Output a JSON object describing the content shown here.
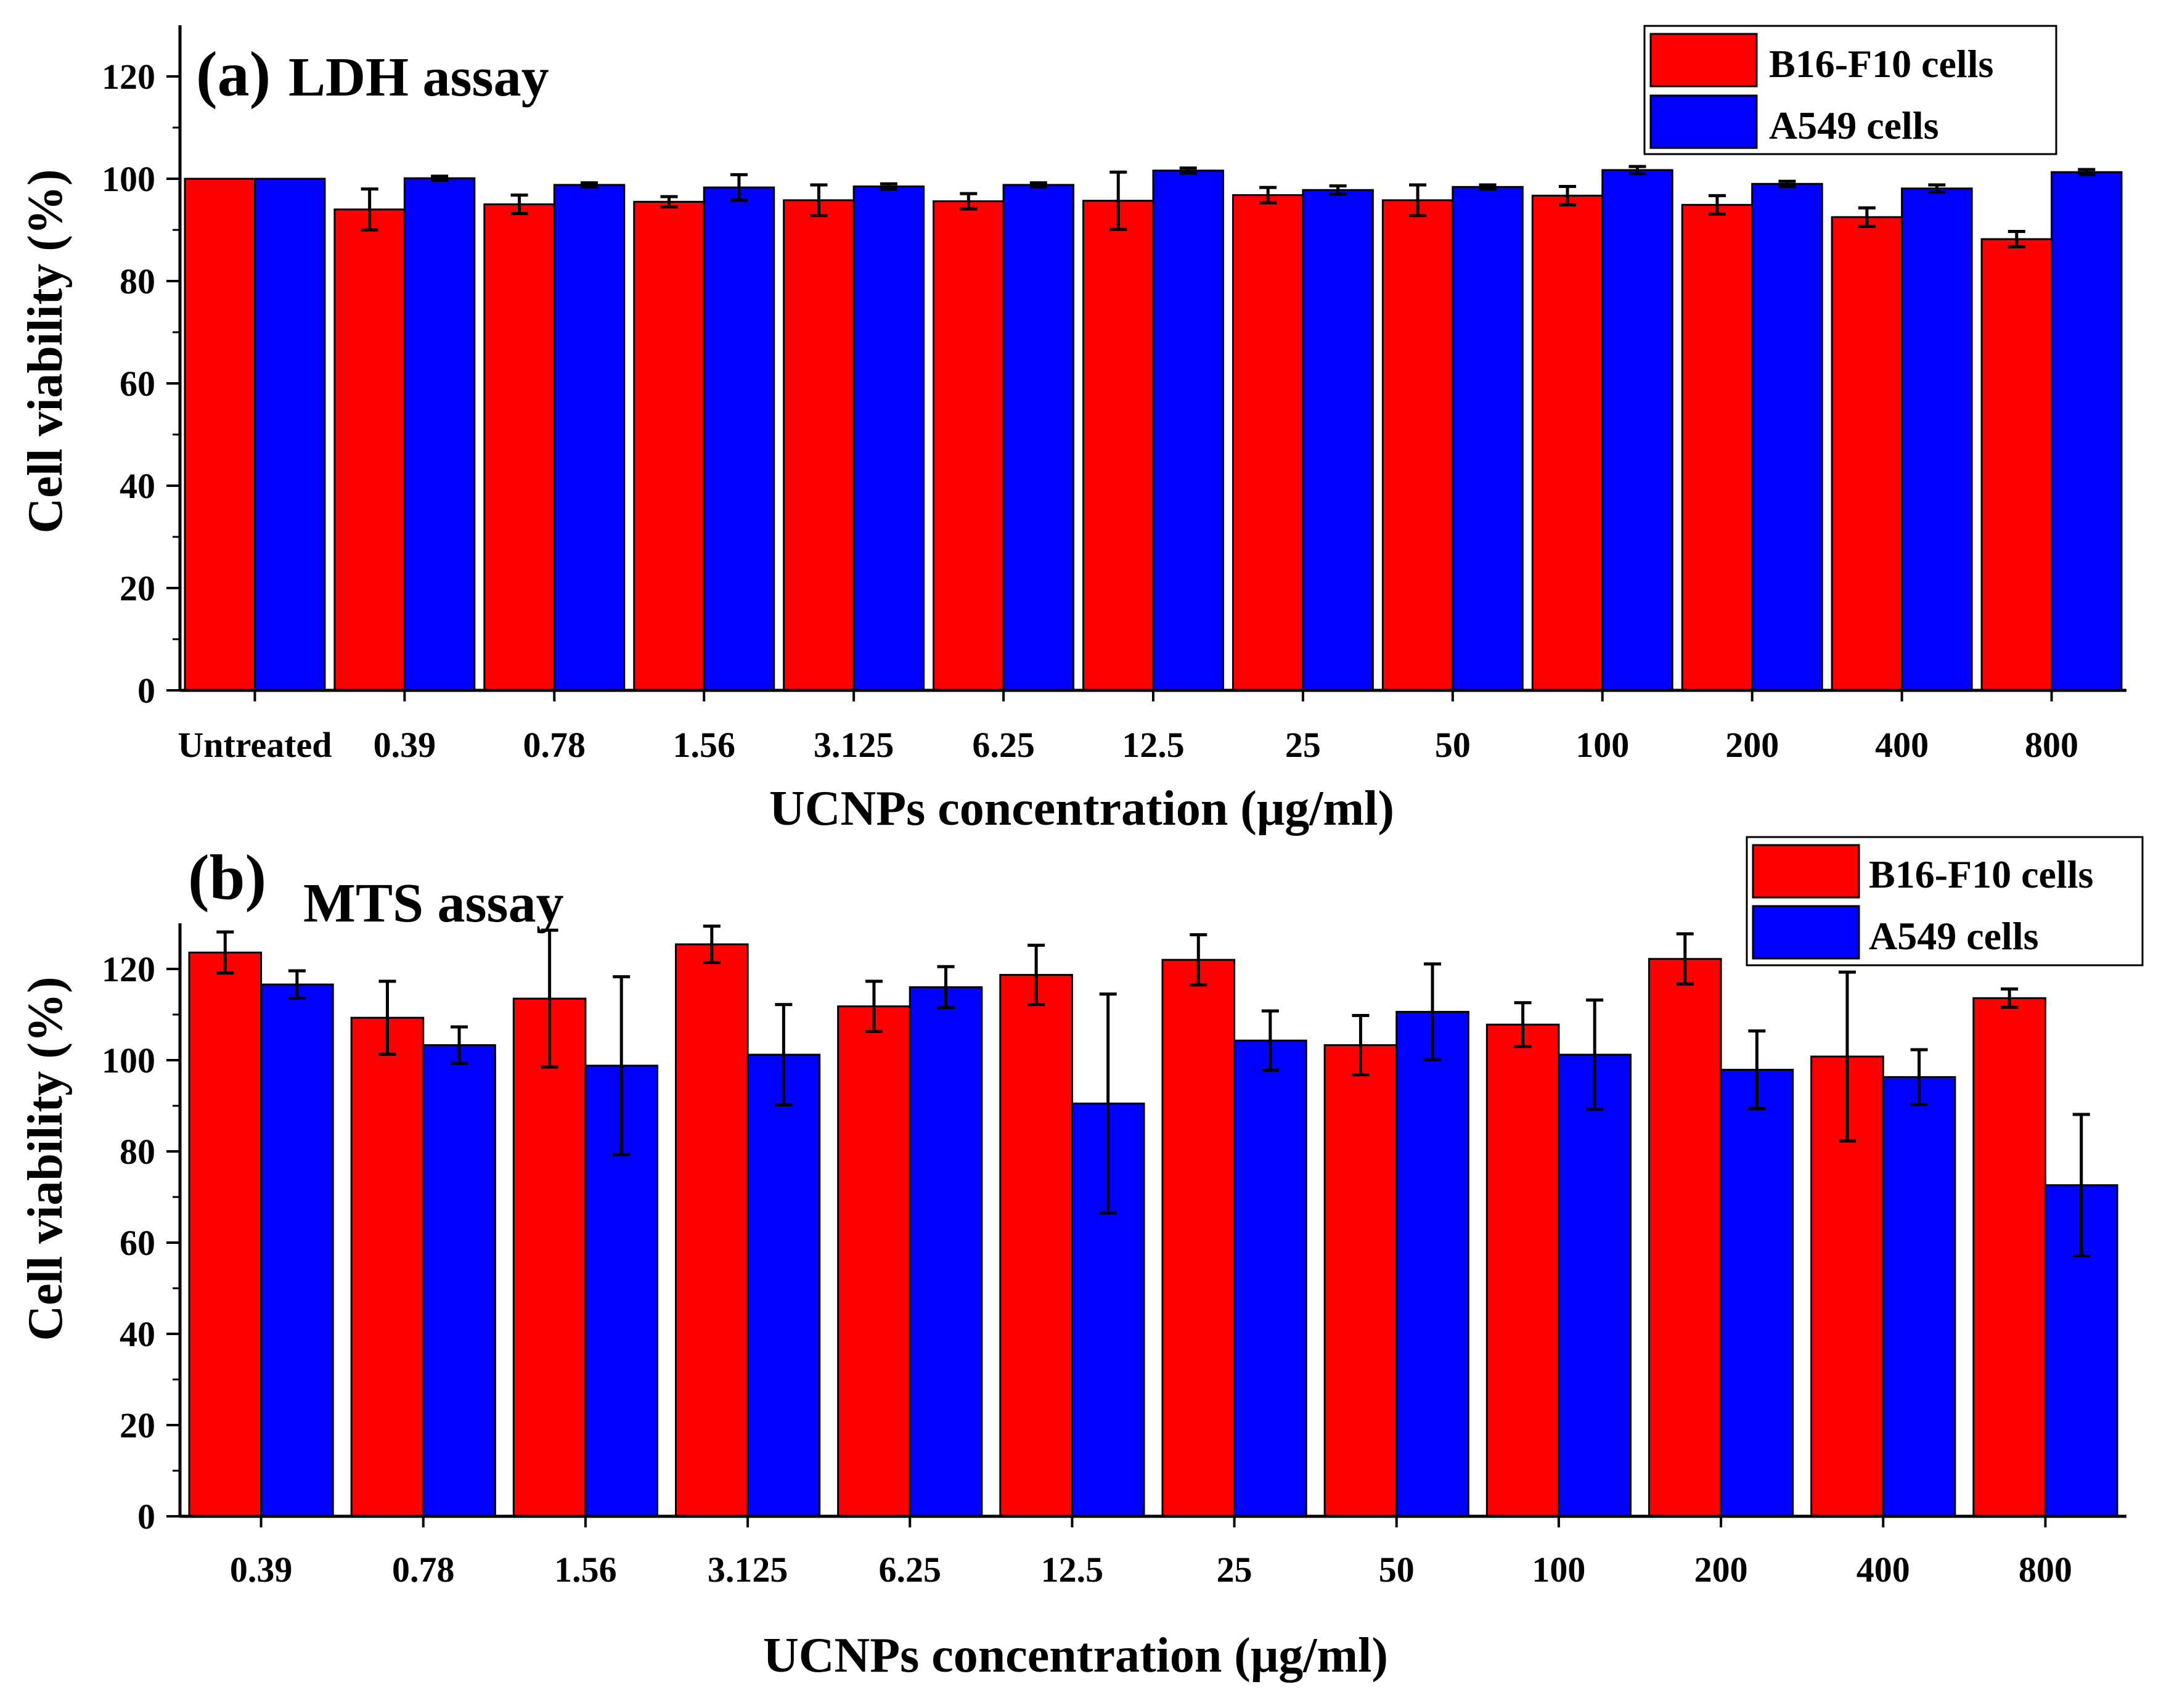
{
  "figure": {
    "colors": {
      "b16f10": "#ff0000",
      "a549": "#0000ff",
      "axis": "#000000"
    }
  },
  "chart_data": [
    {
      "type": "bar",
      "panel_label": "(a)",
      "title": "LDH assay",
      "xlabel": "UCNPs concentration (μg/ml)",
      "ylabel": "Cell viability (%)",
      "ylim": [
        0,
        130
      ],
      "yticks": [
        0,
        20,
        40,
        60,
        80,
        100,
        120
      ],
      "yticks_text": [
        "0",
        "20",
        "40",
        "60",
        "80",
        "100",
        "120"
      ],
      "legend_position": "top-right",
      "categories": [
        "Untreated",
        "0.39",
        "0.78",
        "1.56",
        "3.125",
        "6.25",
        "12.5",
        "25",
        "50",
        "100",
        "200",
        "400",
        "800"
      ],
      "series": [
        {
          "name": "B16-F10 cells",
          "color": "#ff0000",
          "values": [
            100,
            94,
            95,
            95.5,
            95.8,
            95.6,
            95.7,
            96.8,
            95.8,
            96.7,
            94.9,
            92.5,
            88.2
          ],
          "errors": [
            0,
            4,
            1.8,
            1,
            3,
            1.5,
            5.6,
            1.5,
            3,
            1.8,
            1.8,
            1.8,
            1.5
          ]
        },
        {
          "name": "A549 cells",
          "color": "#0000ff",
          "values": [
            100,
            100.1,
            98.8,
            98.3,
            98.5,
            98.8,
            101.6,
            97.8,
            98.4,
            101.7,
            99,
            98.1,
            101.3
          ],
          "errors": [
            0,
            0.4,
            0.4,
            2.5,
            0.5,
            0.4,
            0.5,
            0.8,
            0.4,
            0.7,
            0.5,
            0.7,
            0.5
          ]
        }
      ]
    },
    {
      "type": "bar",
      "panel_label": "(b)",
      "title": "MTS assay",
      "xlabel": "UCNPs concentration (μg/ml)",
      "ylabel": "Cell viability (%)",
      "ylim": [
        0,
        130
      ],
      "yticks": [
        0,
        20,
        40,
        60,
        80,
        100,
        120
      ],
      "yticks_text": [
        "0",
        "20",
        "40",
        "60",
        "80",
        "100",
        "120"
      ],
      "legend_position": "top-right",
      "categories": [
        "0.39",
        "0.78",
        "1.56",
        "3.125",
        "6.25",
        "12.5",
        "25",
        "50",
        "100",
        "200",
        "400",
        "800"
      ],
      "series": [
        {
          "name": "B16-F10 cells",
          "color": "#ff0000",
          "values": [
            123.6,
            109.3,
            113.5,
            125.4,
            111.8,
            118.7,
            122,
            103.3,
            107.8,
            122.2,
            100.8,
            113.6
          ],
          "errors": [
            4.5,
            8,
            15,
            4,
            5.5,
            6.5,
            5.5,
            6.5,
            4.8,
            5.5,
            18.5,
            2
          ]
        },
        {
          "name": "A549 cells",
          "color": "#0000ff",
          "values": [
            116.6,
            103.3,
            98.8,
            101.2,
            116,
            90.5,
            104.3,
            110.6,
            101.2,
            97.9,
            96.3,
            72.6
          ],
          "errors": [
            3,
            4,
            19.5,
            11,
            4.5,
            24,
            6.5,
            10.5,
            12,
            8.5,
            6,
            15.5
          ]
        }
      ]
    }
  ]
}
